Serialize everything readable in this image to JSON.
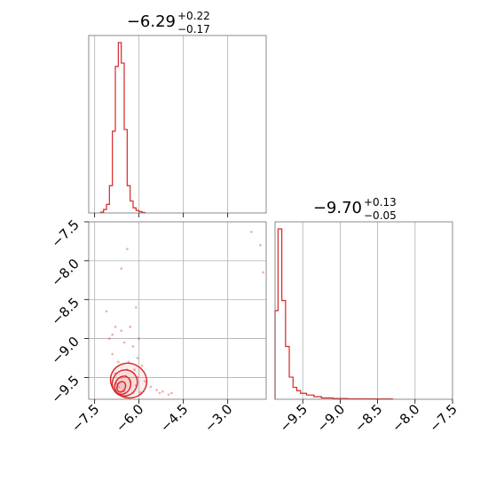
{
  "chart_data": [
    {
      "type": "histogram",
      "panel": "top-left",
      "title": {
        "main": "−6.29",
        "plus": "+0.22",
        "minus": "−0.17"
      },
      "xlim": [
        -7.7,
        -1.7
      ],
      "xticks": [
        -7.5,
        -6.0,
        -4.5,
        -3.0
      ],
      "bins": [
        {
          "x0": -7.3,
          "x1": -7.2,
          "h": 0.005
        },
        {
          "x0": -7.2,
          "x1": -7.1,
          "h": 0.02
        },
        {
          "x0": -7.1,
          "x1": -7.0,
          "h": 0.05
        },
        {
          "x0": -7.0,
          "x1": -6.9,
          "h": 0.16
        },
        {
          "x0": -6.9,
          "x1": -6.8,
          "h": 0.48
        },
        {
          "x0": -6.8,
          "x1": -6.7,
          "h": 0.86
        },
        {
          "x0": -6.7,
          "x1": -6.6,
          "h": 1.0
        },
        {
          "x0": -6.6,
          "x1": -6.5,
          "h": 0.88
        },
        {
          "x0": -6.5,
          "x1": -6.4,
          "h": 0.49
        },
        {
          "x0": -6.4,
          "x1": -6.3,
          "h": 0.16
        },
        {
          "x0": -6.3,
          "x1": -6.2,
          "h": 0.07
        },
        {
          "x0": -6.2,
          "x1": -6.1,
          "h": 0.03
        },
        {
          "x0": -6.1,
          "x1": -6.0,
          "h": 0.015
        },
        {
          "x0": -6.0,
          "x1": -5.9,
          "h": 0.008
        },
        {
          "x0": -5.9,
          "x1": -5.8,
          "h": 0.003
        }
      ]
    },
    {
      "type": "histogram",
      "panel": "bottom-right",
      "title": {
        "main": "−9.70",
        "plus": "+0.13",
        "minus": "−0.05"
      },
      "xlim": [
        -9.87,
        -7.5
      ],
      "xticks": [
        -9.5,
        -9.0,
        -8.5,
        -8.0,
        -7.5
      ],
      "bins": [
        {
          "x0": -9.87,
          "x1": -9.83,
          "h": 0.52
        },
        {
          "x0": -9.83,
          "x1": -9.78,
          "h": 1.0
        },
        {
          "x0": -9.78,
          "x1": -9.73,
          "h": 0.58
        },
        {
          "x0": -9.73,
          "x1": -9.68,
          "h": 0.31
        },
        {
          "x0": -9.68,
          "x1": -9.63,
          "h": 0.13
        },
        {
          "x0": -9.63,
          "x1": -9.58,
          "h": 0.07
        },
        {
          "x0": -9.58,
          "x1": -9.53,
          "h": 0.05
        },
        {
          "x0": -9.53,
          "x1": -9.45,
          "h": 0.035
        },
        {
          "x0": -9.45,
          "x1": -9.35,
          "h": 0.025
        },
        {
          "x0": -9.35,
          "x1": -9.25,
          "h": 0.015
        },
        {
          "x0": -9.25,
          "x1": -9.1,
          "h": 0.008
        },
        {
          "x0": -9.1,
          "x1": -8.9,
          "h": 0.005
        },
        {
          "x0": -8.9,
          "x1": -8.6,
          "h": 0.003
        },
        {
          "x0": -8.6,
          "x1": -8.3,
          "h": 0.002
        }
      ]
    },
    {
      "type": "scatter",
      "panel": "bottom-left",
      "xlim": [
        -7.7,
        -1.7
      ],
      "ylim": [
        -9.78,
        -7.5
      ],
      "xticks": [
        -7.5,
        -6.0,
        -4.5,
        -3.0
      ],
      "yticks": [
        -7.5,
        -8.0,
        -8.5,
        -9.0,
        -9.5
      ],
      "xtick_labels": [
        "−7.5",
        "−6.0",
        "−4.5",
        "−3.0"
      ],
      "ytick_labels": [
        "−7.5",
        "−8.0",
        "−8.5",
        "−9.0",
        "−9.5"
      ],
      "points": [
        [
          -2.2,
          -7.63
        ],
        [
          -1.9,
          -7.8
        ],
        [
          -1.8,
          -8.15
        ],
        [
          -6.4,
          -7.85
        ],
        [
          -6.6,
          -8.1
        ],
        [
          -6.1,
          -8.6
        ],
        [
          -7.1,
          -8.65
        ],
        [
          -6.8,
          -8.85
        ],
        [
          -6.9,
          -8.95
        ],
        [
          -6.3,
          -8.85
        ],
        [
          -6.0,
          -9.0
        ],
        [
          -6.2,
          -9.1
        ],
        [
          -6.5,
          -9.05
        ],
        [
          -6.9,
          -9.2
        ],
        [
          -6.7,
          -9.3
        ],
        [
          -6.05,
          -9.25
        ],
        [
          -5.9,
          -9.35
        ],
        [
          -6.4,
          -9.4
        ],
        [
          -6.8,
          -9.45
        ],
        [
          -6.6,
          -9.5
        ],
        [
          -6.3,
          -9.55
        ],
        [
          -6.1,
          -9.6
        ],
        [
          -5.8,
          -9.55
        ],
        [
          -5.6,
          -9.62
        ],
        [
          -5.4,
          -9.66
        ],
        [
          -6.7,
          -9.62
        ],
        [
          -6.5,
          -9.68
        ],
        [
          -6.2,
          -9.7
        ],
        [
          -5.95,
          -9.69
        ],
        [
          -5.3,
          -9.7
        ],
        [
          -4.9,
          -9.7
        ],
        [
          -6.75,
          -9.58
        ],
        [
          -6.45,
          -9.48
        ],
        [
          -6.15,
          -9.4
        ],
        [
          -7.0,
          -9.0
        ],
        [
          -6.6,
          -8.9
        ],
        [
          -5.2,
          -9.68
        ],
        [
          -5.0,
          -9.72
        ],
        [
          -6.35,
          -9.3
        ],
        [
          -6.05,
          -9.5
        ]
      ],
      "contours": [
        {
          "cx": -6.6,
          "cy": -9.62,
          "rx": 0.14,
          "ry": 0.07
        },
        {
          "cx": -6.55,
          "cy": -9.6,
          "rx": 0.26,
          "ry": 0.12
        },
        {
          "cx": -6.48,
          "cy": -9.57,
          "rx": 0.42,
          "ry": 0.17
        },
        {
          "cx": -6.35,
          "cy": -9.54,
          "rx": 0.62,
          "ry": 0.22
        }
      ]
    }
  ],
  "colors": {
    "series": "#d62728",
    "grid": "#b0b0b0",
    "frame": "#6e6e6e"
  }
}
